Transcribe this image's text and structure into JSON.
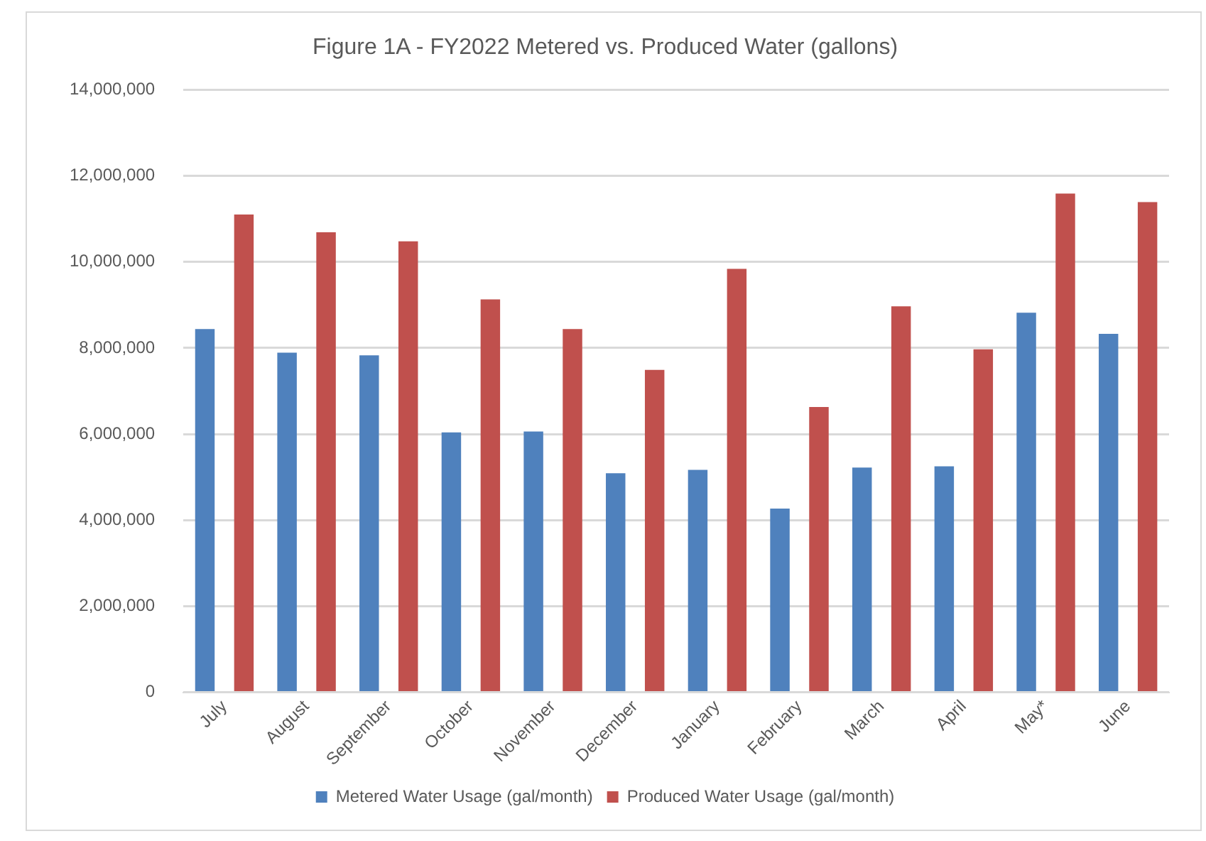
{
  "chart_data": {
    "type": "bar",
    "title": "Figure 1A - FY2022 Metered vs. Produced Water (gallons)",
    "categories": [
      "July",
      "August",
      "September",
      "October",
      "November",
      "December",
      "January",
      "February",
      "March",
      "April",
      "May*",
      "June"
    ],
    "series": [
      {
        "name": "Metered Water Usage (gal/month)",
        "color": "#4f81bd",
        "values": [
          8440000,
          7890000,
          7830000,
          6040000,
          6060000,
          5090000,
          5170000,
          4270000,
          5220000,
          5250000,
          8820000,
          8330000
        ]
      },
      {
        "name": "Produced Water Usage (gal/month)",
        "color": "#c0504d",
        "values": [
          11100000,
          10690000,
          10480000,
          9130000,
          8440000,
          7490000,
          9840000,
          6630000,
          8970000,
          7970000,
          11590000,
          11390000
        ]
      }
    ],
    "ylim": [
      0,
      14000000
    ],
    "yticks": [
      {
        "value": 0,
        "label": "0"
      },
      {
        "value": 2000000,
        "label": "2,000,000"
      },
      {
        "value": 4000000,
        "label": "4,000,000"
      },
      {
        "value": 6000000,
        "label": "6,000,000"
      },
      {
        "value": 8000000,
        "label": "8,000,000"
      },
      {
        "value": 10000000,
        "label": "10,000,000"
      },
      {
        "value": 12000000,
        "label": "12,000,000"
      },
      {
        "value": 14000000,
        "label": "14,000,000"
      }
    ],
    "grid": "y",
    "legend": "bottom"
  }
}
